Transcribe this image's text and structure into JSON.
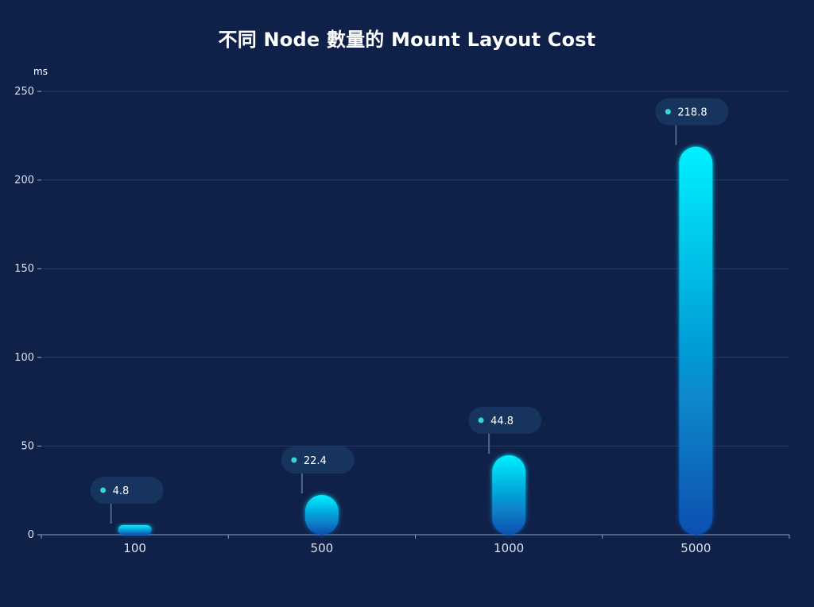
{
  "chart_data": {
    "type": "bar",
    "title": "不同 Node 數量的 Mount Layout Cost",
    "ylabel": "ms",
    "xlabel": "",
    "categories": [
      "100",
      "500",
      "1000",
      "5000"
    ],
    "values": [
      4.8,
      22.4,
      44.8,
      218.8
    ],
    "value_labels": [
      "4.8",
      "22.4",
      "44.8",
      "218.8"
    ],
    "ylim": [
      0,
      250
    ],
    "yticks": [
      0,
      50,
      100,
      150,
      200,
      250
    ],
    "ytick_labels": [
      "0",
      "50",
      "100",
      "150",
      "200",
      "250"
    ],
    "grid": true,
    "legend": "none"
  },
  "colors": {
    "background": "#0f2149",
    "grid": "#2a3d66",
    "bar_top": "#00f0ff",
    "bar_bottom": "#0b4fb0",
    "label_pill": "#16345e",
    "label_dot": "#34d6d6",
    "connector": "#4a6a8a"
  }
}
